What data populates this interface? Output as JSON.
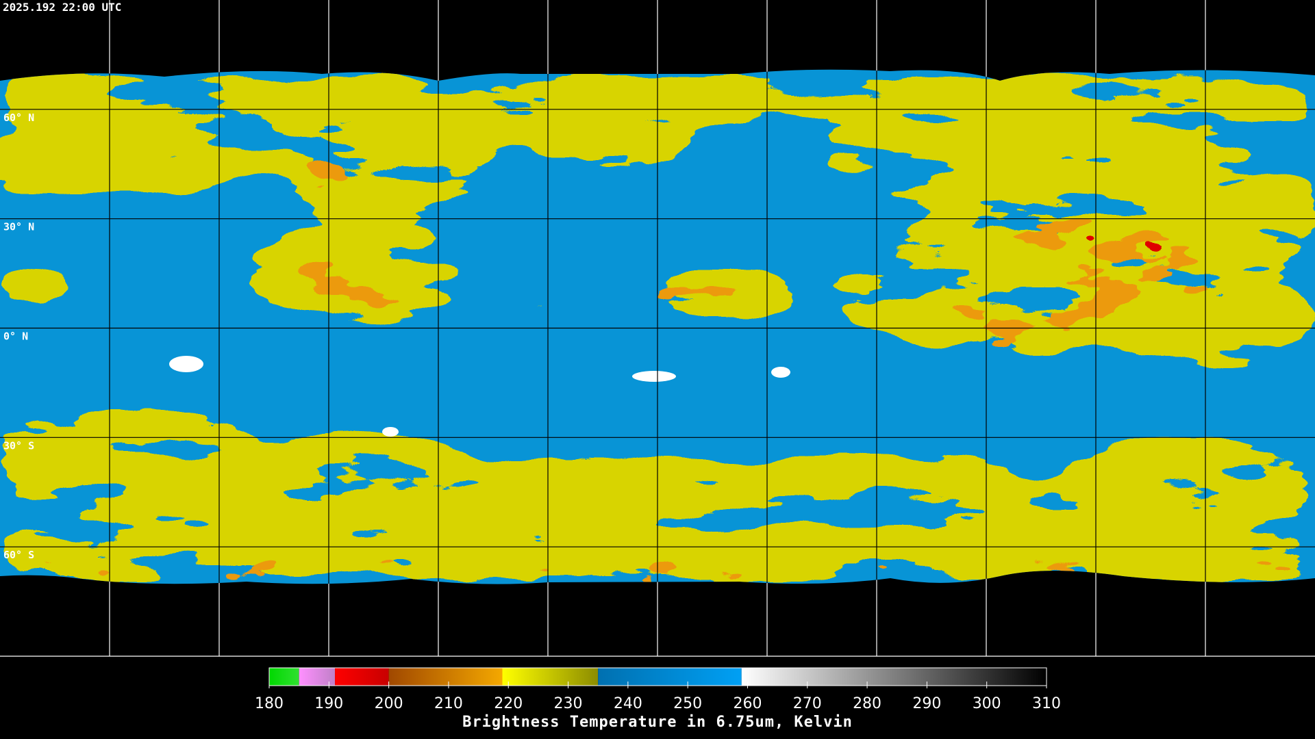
{
  "header": {
    "timestamp": "2025.192 22:00 UTC"
  },
  "map": {
    "latitude_labels": [
      {
        "value": 60,
        "label": "60° N"
      },
      {
        "value": 30,
        "label": "30° N"
      },
      {
        "value": 0,
        "label": "0° N"
      },
      {
        "value": -30,
        "label": "30° S"
      },
      {
        "value": -60,
        "label": "60° S"
      }
    ]
  },
  "colorbar": {
    "title": "Brightness Temperature in 6.75um, Kelvin",
    "range": [
      180,
      310
    ],
    "ticks": [
      180,
      190,
      200,
      210,
      220,
      230,
      240,
      250,
      260,
      270,
      280,
      290,
      300,
      310
    ],
    "segments": [
      {
        "from": 180,
        "to": 185,
        "colors": [
          "#00d800",
          "#30e030"
        ]
      },
      {
        "from": 185,
        "to": 191,
        "colors": [
          "#ff90ff",
          "#c080c8"
        ]
      },
      {
        "from": 191,
        "to": 200,
        "colors": [
          "#ff0000",
          "#c80000"
        ]
      },
      {
        "from": 200,
        "to": 219,
        "colors": [
          "#a04800",
          "#f4a800"
        ]
      },
      {
        "from": 219,
        "to": 235,
        "colors": [
          "#ffff00",
          "#8c8c00"
        ]
      },
      {
        "from": 235,
        "to": 259,
        "colors": [
          "#0070b0",
          "#00a0f4"
        ]
      },
      {
        "from": 259,
        "to": 310,
        "colors": [
          "#ffffff",
          "#000000"
        ]
      }
    ]
  }
}
